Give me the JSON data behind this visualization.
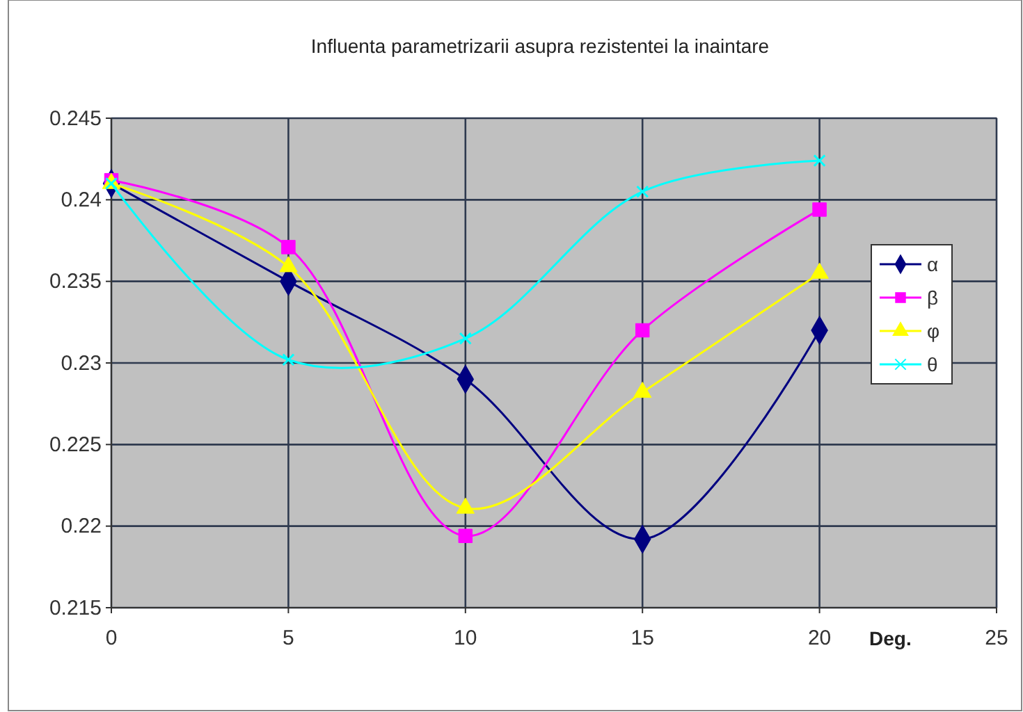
{
  "chart_data": {
    "type": "line",
    "title": "Influenta parametrizarii asupra rezistentei la inaintare",
    "xlabel": "Deg.",
    "x": [
      0,
      5,
      10,
      15,
      20
    ],
    "series": [
      {
        "name": "α",
        "color": "#000080",
        "marker": "diamond",
        "values": [
          0.241,
          0.235,
          0.229,
          0.2192,
          0.232
        ]
      },
      {
        "name": "β",
        "color": "#ff00ff",
        "marker": "square",
        "values": [
          0.2412,
          0.2371,
          0.2194,
          0.232,
          0.2394
        ]
      },
      {
        "name": "φ",
        "color": "#ffff00",
        "marker": "triangle",
        "values": [
          0.241,
          0.2359,
          0.2211,
          0.2282,
          0.2355
        ]
      },
      {
        "name": "θ",
        "color": "#00ffff",
        "marker": "cross",
        "values": [
          0.241,
          0.2302,
          0.2315,
          0.2405,
          0.2424
        ]
      }
    ],
    "xlim": [
      0,
      25
    ],
    "xticks": [
      0,
      5,
      10,
      15,
      20,
      25
    ],
    "ylim": [
      0.215,
      0.245
    ],
    "yticks": [
      0.215,
      0.22,
      0.225,
      0.23,
      0.235,
      0.24,
      0.245
    ],
    "grid": true,
    "legend": "right"
  }
}
